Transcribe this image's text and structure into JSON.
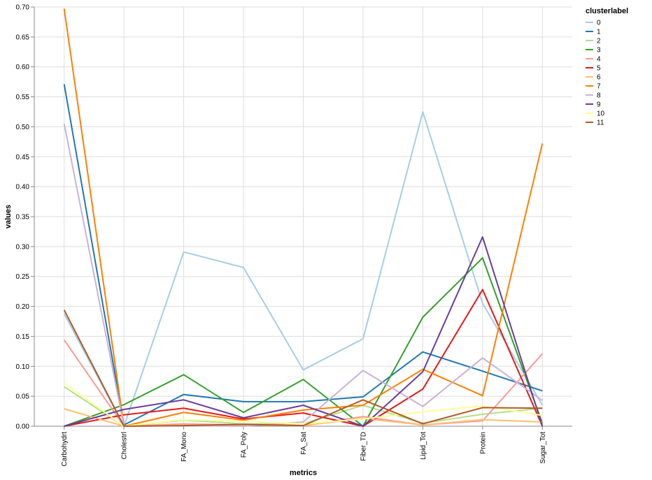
{
  "chart_data": {
    "type": "line",
    "xlabel": "metrics",
    "ylabel": "values",
    "ylim": [
      0,
      0.7
    ],
    "yticks": [
      "0.00",
      "0.05",
      "0.10",
      "0.15",
      "0.20",
      "0.25",
      "0.30",
      "0.35",
      "0.40",
      "0.45",
      "0.50",
      "0.55",
      "0.60",
      "0.65",
      "0.70"
    ],
    "categories": [
      "Carbohydrt",
      "Cholestrl",
      "FA_Mono",
      "FA_Poly",
      "FA_Sat",
      "Fiber_TD",
      "Lipid_Tot",
      "Protein",
      "Sugar_Tot"
    ],
    "grid": true,
    "legend": {
      "title": "clusterlabel",
      "position": "top-right"
    },
    "series": [
      {
        "name": "0",
        "color": "#a6cee3",
        "values": [
          0.188,
          0.0,
          0.291,
          0.265,
          0.094,
          0.146,
          0.525,
          0.205,
          0.035
        ]
      },
      {
        "name": "1",
        "color": "#1f78b4",
        "values": [
          0.571,
          0.002,
          0.053,
          0.041,
          0.041,
          0.049,
          0.124,
          0.092,
          0.059
        ]
      },
      {
        "name": "2",
        "color": "#b2df8a",
        "values": [
          0.066,
          0.0,
          0.01,
          0.004,
          0.004,
          0.035,
          0.005,
          0.02,
          0.03
        ]
      },
      {
        "name": "3",
        "color": "#33a02c",
        "values": [
          0.0,
          0.036,
          0.086,
          0.023,
          0.078,
          0.0,
          0.182,
          0.281,
          0.005
        ]
      },
      {
        "name": "4",
        "color": "#fb9a99",
        "values": [
          0.144,
          0.0,
          0.004,
          0.002,
          0.001,
          0.016,
          0.002,
          0.009,
          0.121
        ]
      },
      {
        "name": "5",
        "color": "#e31a1c",
        "values": [
          0.0,
          0.019,
          0.03,
          0.012,
          0.022,
          0.0,
          0.062,
          0.228,
          0.0
        ]
      },
      {
        "name": "6",
        "color": "#fdbf6f",
        "values": [
          0.029,
          0.0,
          0.002,
          0.002,
          0.001,
          0.013,
          0.002,
          0.011,
          0.007
        ]
      },
      {
        "name": "7",
        "color": "#ff7f00",
        "values": [
          0.697,
          0.0,
          0.023,
          0.01,
          0.027,
          0.035,
          0.095,
          0.051,
          0.472
        ]
      },
      {
        "name": "8",
        "color": "#cab2d6",
        "values": [
          0.505,
          0.0,
          0.001,
          0.0,
          0.007,
          0.093,
          0.033,
          0.114,
          0.043
        ]
      },
      {
        "name": "9",
        "color": "#6a3d9a",
        "values": [
          0.0,
          0.028,
          0.044,
          0.014,
          0.035,
          0.0,
          0.091,
          0.316,
          0.0
        ]
      },
      {
        "name": "10",
        "color": "#ffff99",
        "values": [
          0.072,
          0.0,
          0.011,
          0.008,
          0.004,
          0.012,
          0.024,
          0.034,
          0.018
        ]
      },
      {
        "name": "11",
        "color": "#b15928",
        "values": [
          0.194,
          0.0,
          0.001,
          0.003,
          0.001,
          0.044,
          0.004,
          0.031,
          0.03
        ]
      }
    ]
  }
}
